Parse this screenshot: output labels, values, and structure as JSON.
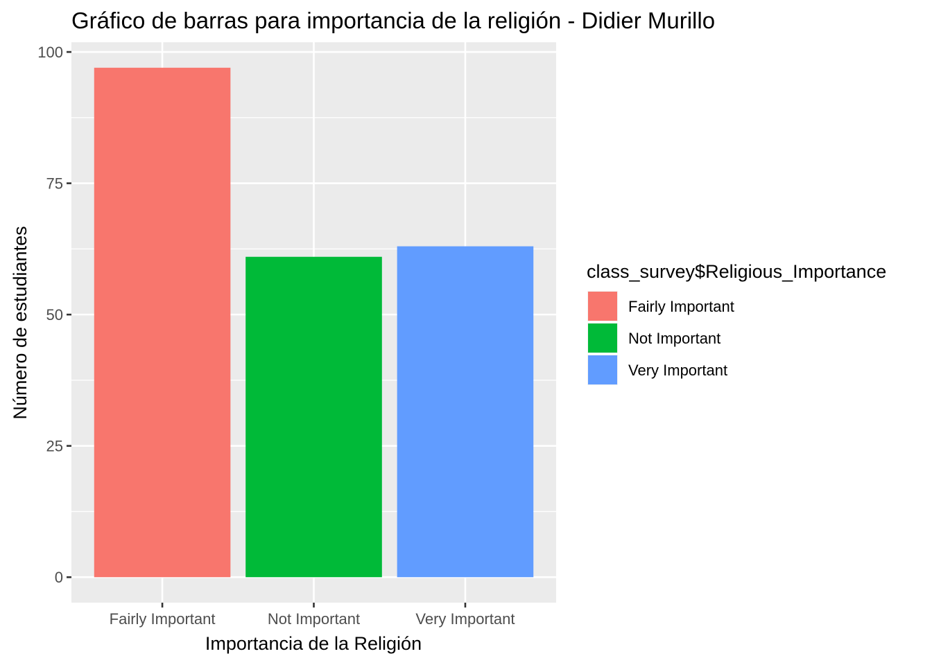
{
  "chart_data": {
    "type": "bar",
    "title": "Gráfico de barras para importancia de la religión - Didier Murillo",
    "xlabel": "Importancia de la Religión",
    "ylabel": "Número de estudiantes",
    "categories": [
      "Fairly Important",
      "Not Important",
      "Very Important"
    ],
    "values": [
      97,
      61,
      63
    ],
    "colors": [
      "#F8766D",
      "#00BA38",
      "#619CFF"
    ],
    "ylim": [
      -4.85,
      101.85
    ],
    "yticks": [
      0,
      25,
      50,
      75,
      100
    ],
    "grid": true,
    "legend": {
      "title": "class_survey$Religious_Importance",
      "placement": "right",
      "entries": [
        "Fairly Important",
        "Not Important",
        "Very Important"
      ]
    }
  }
}
